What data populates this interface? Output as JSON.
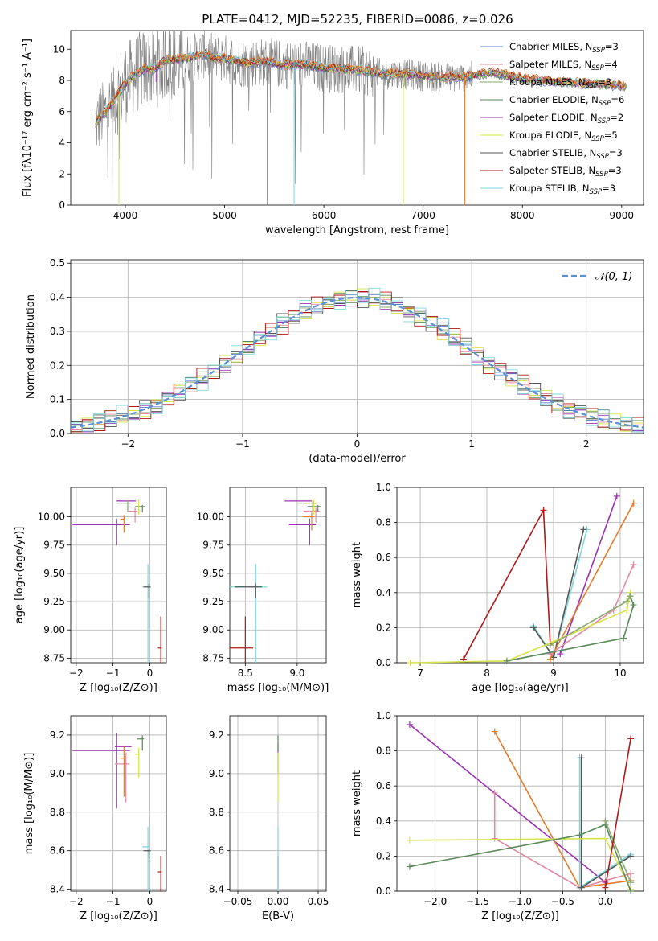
{
  "figure_title": "PLATE=0412, MJD=52235, FIBERID=0086, z=0.026",
  "colors": {
    "chabrier_miles": "#5b7fc6",
    "salpeter_miles": "#e08aa2",
    "kroupa_miles": "#8aa86a",
    "chabrier_elodie": "#5a8a5a",
    "salpeter_elodie": "#9a30b4",
    "kroupa_elodie": "#d6e44a",
    "chabrier_stelib": "#555555",
    "salpeter_stelib": "#b01818",
    "kroupa_stelib": "#7fd6dc",
    "orange_model": "#e07b2a",
    "gray_data": "#808080",
    "gaussian": "#5b8fd6"
  },
  "chart_data": [
    {
      "id": "spectrum",
      "type": "line",
      "title": "PLATE=0412, MJD=52235, FIBERID=0086, z=0.026",
      "xlabel": "wavelength [Angstrom, rest frame]",
      "ylabel": "Flux [fλ10⁻¹⁷ erg cm⁻² s⁻¹ A⁻¹]",
      "xlim": [
        3450,
        9220
      ],
      "ylim": [
        0,
        11.2
      ],
      "xticks": [
        4000,
        5000,
        6000,
        7000,
        8000,
        9000
      ],
      "yticks": [
        0,
        2,
        4,
        6,
        8,
        10
      ],
      "grid": false,
      "legend_position": "top-right",
      "legend": [
        {
          "label": "Chabrier MILES, N",
          "sub": "SSP",
          "suffix": "=3",
          "color_key": "chabrier_miles"
        },
        {
          "label": "Salpeter MILES, N",
          "sub": "SSP",
          "suffix": "=4",
          "color_key": "salpeter_miles"
        },
        {
          "label": "Kroupa MILES, N",
          "sub": "SSP",
          "suffix": "=3",
          "color_key": "kroupa_miles"
        },
        {
          "label": "Chabrier ELODIE, N",
          "sub": "SSP",
          "suffix": "=6",
          "color_key": "chabrier_elodie"
        },
        {
          "label": "Salpeter ELODIE, N",
          "sub": "SSP",
          "suffix": "=2",
          "color_key": "salpeter_elodie"
        },
        {
          "label": "Kroupa ELODIE, N",
          "sub": "SSP",
          "suffix": "=5",
          "color_key": "kroupa_elodie"
        },
        {
          "label": "Chabrier STELIB, N",
          "sub": "SSP",
          "suffix": "=3",
          "color_key": "chabrier_stelib"
        },
        {
          "label": "Salpeter STELIB, N",
          "sub": "SSP",
          "suffix": "=3",
          "color_key": "salpeter_stelib"
        },
        {
          "label": "Kroupa STELIB, N",
          "sub": "SSP",
          "suffix": "=3",
          "color_key": "kroupa_stelib"
        }
      ],
      "continuum": {
        "x": [
          3700,
          3800,
          3900,
          4000,
          4100,
          4200,
          4300,
          4400,
          4500,
          4600,
          4700,
          4800,
          4900,
          5000,
          5200,
          5400,
          5600,
          5800,
          6000,
          6200,
          6400,
          6600,
          6800,
          7000,
          7200,
          7400,
          7500,
          7700,
          8000,
          8300,
          8600,
          8900,
          9200
        ],
        "y": [
          5.2,
          6.0,
          6.8,
          7.8,
          8.4,
          8.8,
          8.7,
          9.3,
          9.3,
          9.4,
          9.5,
          9.7,
          9.4,
          9.4,
          9.1,
          9.2,
          9.0,
          9.0,
          8.8,
          8.7,
          8.6,
          8.4,
          8.4,
          8.3,
          8.2,
          8.2,
          8.3,
          8.5,
          8.1,
          7.9,
          7.8,
          7.7,
          7.5
        ]
      },
      "absorption_dips": [
        {
          "x": 3935,
          "y": 0.0,
          "color_key": "kroupa_elodie"
        },
        {
          "x": 4310,
          "y": 7.9,
          "color_key": "salpeter_elodie"
        },
        {
          "x": 5430,
          "y": 0.0,
          "color_key": "gray_data"
        },
        {
          "x": 5700,
          "y": 0.0,
          "color_key": "kroupa_stelib"
        },
        {
          "x": 6800,
          "y": 0.0,
          "color_key": "kroupa_elodie"
        },
        {
          "x": 7420,
          "y": 0.0,
          "color_key": "orange_model"
        }
      ]
    },
    {
      "id": "residual_histogram",
      "type": "histogram",
      "xlabel": "(data-model)/error",
      "ylabel": "Normed distribution",
      "xlim": [
        -2.5,
        2.5
      ],
      "ylim": [
        0,
        0.51
      ],
      "xticks": [
        -2,
        -1,
        0,
        1,
        2
      ],
      "yticks": [
        0.0,
        0.1,
        0.2,
        0.3,
        0.4,
        0.5
      ],
      "grid": true,
      "legend_position": "top-right",
      "legend": [
        {
          "label": "𝒩(0, 1)",
          "color_key": "gaussian",
          "style": "dashed"
        }
      ],
      "bin_width": 0.1,
      "jitter": [
        0.012,
        -0.018,
        0.021,
        -0.009,
        0.015,
        -0.022,
        0.008,
        -0.013,
        0.019,
        -0.006,
        0.024,
        -0.016,
        0.011,
        -0.02,
        0.005,
        -0.011,
        0.017,
        -0.024,
        0.013,
        -0.004,
        0.02,
        -0.015,
        0.009,
        -0.019,
        0.014,
        -0.007,
        0.022,
        -0.012,
        0.006,
        -0.021,
        0.016,
        -0.01,
        0.023,
        -0.017,
        0.01,
        -0.023,
        0.018,
        -0.005,
        0.025,
        -0.014,
        0.007,
        -0.02,
        0.012,
        -0.008,
        0.019,
        -0.016,
        0.004,
        -0.012,
        0.021,
        -0.018
      ],
      "series_keys": [
        "chabrier_miles",
        "salpeter_miles",
        "kroupa_miles",
        "chabrier_elodie",
        "salpeter_elodie",
        "kroupa_elodie",
        "chabrier_stelib",
        "salpeter_stelib",
        "kroupa_stelib"
      ]
    },
    {
      "id": "age_vs_Z",
      "type": "scatter",
      "xlabel": "Z [log₁₀(Z/Z⊙)]",
      "ylabel": "age  [log₁₀(age/yr)]",
      "xlim": [
        -2.15,
        0.45
      ],
      "ylim": [
        8.71,
        10.26
      ],
      "xticks": [
        -2,
        -1,
        0
      ],
      "yticks": [
        8.75,
        9.0,
        9.25,
        9.5,
        9.75,
        10.0
      ],
      "grid": true,
      "points": [
        {
          "x": -0.9,
          "y": 9.93,
          "dx": 1.2,
          "dy": 0.18,
          "color_key": "salpeter_elodie"
        },
        {
          "x": -0.5,
          "y": 10.14,
          "dx": 0.4,
          "dy": 0.0,
          "color_key": "salpeter_elodie"
        },
        {
          "x": -0.6,
          "y": 10.12,
          "dx": 0.3,
          "dy": 0.08,
          "color_key": "kroupa_miles"
        },
        {
          "x": -0.4,
          "y": 10.05,
          "dx": 0.2,
          "dy": 0.1,
          "color_key": "salpeter_miles"
        },
        {
          "x": -0.7,
          "y": 9.98,
          "dx": 0.1,
          "dy": 0.12,
          "color_key": "orange_model"
        },
        {
          "x": -0.2,
          "y": 10.09,
          "dx": 0.2,
          "dy": 0.05,
          "color_key": "chabrier_elodie"
        },
        {
          "x": -0.3,
          "y": 10.12,
          "dx": 0.1,
          "dy": 0.1,
          "color_key": "kroupa_elodie"
        },
        {
          "x": -0.05,
          "y": 9.38,
          "dx": 0.15,
          "dy": 0.68,
          "color_key": "kroupa_stelib"
        },
        {
          "x": -0.02,
          "y": 9.38,
          "dx": 0.15,
          "dy": 0.1,
          "color_key": "chabrier_stelib"
        },
        {
          "x": 0.3,
          "y": 8.84,
          "dx": 0.08,
          "dy": 0.93,
          "color_key": "salpeter_stelib"
        }
      ]
    },
    {
      "id": "age_vs_mass",
      "type": "scatter",
      "xlabel": "mass [log₁₀(M/M⊙)]",
      "ylabel": "",
      "xlim": [
        8.35,
        9.28
      ],
      "ylim": [
        8.71,
        10.26
      ],
      "xticks": [
        8.5,
        9.0
      ],
      "yticks": [
        8.75,
        9.0,
        9.25,
        9.5,
        9.75,
        10.0
      ],
      "grid": true,
      "points": [
        {
          "x": 8.5,
          "y": 8.84,
          "dx": 0.25,
          "dy": 0.93,
          "color_key": "salpeter_stelib"
        },
        {
          "x": 8.6,
          "y": 9.38,
          "dx": 0.37,
          "dy": 0.68,
          "color_key": "kroupa_stelib"
        },
        {
          "x": 8.6,
          "y": 9.38,
          "dx": 0.2,
          "dy": 0.1,
          "color_key": "chabrier_stelib"
        },
        {
          "x": 9.12,
          "y": 9.93,
          "dx": 0.2,
          "dy": 0.18,
          "color_key": "salpeter_elodie"
        },
        {
          "x": 9.08,
          "y": 10.14,
          "dx": 0.2,
          "dy": 0.0,
          "color_key": "salpeter_elodie"
        },
        {
          "x": 9.15,
          "y": 10.12,
          "dx": 0.15,
          "dy": 0.08,
          "color_key": "kroupa_miles"
        },
        {
          "x": 9.18,
          "y": 10.05,
          "dx": 0.12,
          "dy": 0.1,
          "color_key": "salpeter_miles"
        },
        {
          "x": 9.14,
          "y": 10.0,
          "dx": 0.08,
          "dy": 0.12,
          "color_key": "orange_model"
        },
        {
          "x": 9.2,
          "y": 10.09,
          "dx": 0.1,
          "dy": 0.05,
          "color_key": "chabrier_elodie"
        },
        {
          "x": 9.16,
          "y": 10.12,
          "dx": 0.1,
          "dy": 0.1,
          "color_key": "kroupa_elodie"
        }
      ]
    },
    {
      "id": "mass_weight_vs_age",
      "type": "line",
      "xlabel": "age  [log₁₀(age/yr)]",
      "ylabel": "mass weight",
      "xlim": [
        6.65,
        10.35
      ],
      "ylim": [
        0,
        1.0
      ],
      "xticks": [
        7,
        8,
        9,
        10
      ],
      "yticks": [
        0.0,
        0.2,
        0.4,
        0.6,
        0.8,
        1.0
      ],
      "grid": true,
      "series": [
        {
          "color_key": "salpeter_stelib",
          "x": [
            7.65,
            8.85,
            8.95
          ],
          "y": [
            0.02,
            0.87,
            0.11
          ]
        },
        {
          "color_key": "kroupa_stelib",
          "x": [
            8.7,
            9.0,
            9.5
          ],
          "y": [
            0.21,
            0.03,
            0.76
          ]
        },
        {
          "color_key": "chabrier_stelib",
          "x": [
            8.7,
            9.0,
            9.45
          ],
          "y": [
            0.2,
            0.03,
            0.76
          ]
        },
        {
          "color_key": "salpeter_elodie",
          "x": [
            9.1,
            9.95
          ],
          "y": [
            0.05,
            0.95
          ]
        },
        {
          "color_key": "orange_model",
          "x": [
            8.95,
            10.2
          ],
          "y": [
            0.02,
            0.91
          ]
        },
        {
          "color_key": "salpeter_miles",
          "x": [
            8.95,
            9.9,
            10.2
          ],
          "y": [
            0.05,
            0.3,
            0.56
          ]
        },
        {
          "color_key": "kroupa_elodie",
          "x": [
            6.85,
            8.3,
            9.0,
            10.1,
            10.15
          ],
          "y": [
            0.0,
            0.01,
            0.12,
            0.3,
            0.4
          ]
        },
        {
          "color_key": "chabrier_elodie",
          "x": [
            8.3,
            10.05,
            10.2,
            10.15
          ],
          "y": [
            0.01,
            0.14,
            0.33,
            0.38
          ]
        },
        {
          "color_key": "kroupa_miles",
          "x": [
            8.95,
            10.1,
            10.15
          ],
          "y": [
            0.1,
            0.35,
            0.38
          ]
        }
      ]
    },
    {
      "id": "mass_vs_Z",
      "type": "scatter",
      "xlabel": "Z [log₁₀(Z/Z⊙)]",
      "ylabel": "mass  [log₁₀(M/M⊙)]",
      "xlim": [
        -2.15,
        0.45
      ],
      "ylim": [
        8.39,
        9.3
      ],
      "xticks": [
        -2,
        -1,
        0
      ],
      "yticks": [
        8.4,
        8.6,
        8.8,
        9.0,
        9.2
      ],
      "grid": true,
      "points": [
        {
          "x": -0.9,
          "y": 9.12,
          "dx": 1.2,
          "dy": 0.3,
          "color_key": "salpeter_elodie"
        },
        {
          "x": -0.6,
          "y": 9.14,
          "dx": 0.35,
          "dy": 0.0,
          "color_key": "salpeter_elodie"
        },
        {
          "x": -0.65,
          "y": 9.05,
          "dx": 0.3,
          "dy": 0.2,
          "color_key": "salpeter_miles"
        },
        {
          "x": -0.7,
          "y": 9.08,
          "dx": 0.1,
          "dy": 0.2,
          "color_key": "orange_model"
        },
        {
          "x": -0.2,
          "y": 9.18,
          "dx": 0.15,
          "dy": 0.06,
          "color_key": "chabrier_elodie"
        },
        {
          "x": -0.3,
          "y": 9.1,
          "dx": 0.1,
          "dy": 0.12,
          "color_key": "kroupa_elodie"
        },
        {
          "x": -0.05,
          "y": 8.62,
          "dx": 0.15,
          "dy": 0.35,
          "color_key": "kroupa_stelib"
        },
        {
          "x": -0.02,
          "y": 8.6,
          "dx": 0.15,
          "dy": 0.03,
          "color_key": "chabrier_stelib"
        },
        {
          "x": 0.3,
          "y": 8.49,
          "dx": 0.08,
          "dy": 0.28,
          "color_key": "salpeter_stelib"
        }
      ]
    },
    {
      "id": "mass_vs_ebv",
      "type": "scatter",
      "xlabel": "E(B-V)",
      "ylabel": "",
      "xlim": [
        -0.06,
        0.06
      ],
      "ylim": [
        8.39,
        9.3
      ],
      "xticks": [
        -0.05,
        0.0,
        0.05
      ],
      "xtick_labels": [
        "−0.05",
        "0.00",
        "0.05"
      ],
      "yticks": [
        8.4,
        8.6,
        8.8,
        9.0,
        9.2
      ],
      "grid": true,
      "points": [
        {
          "x": 0.0,
          "y": 8.49,
          "dx": 0,
          "dy": 0.28,
          "color_key": "salpeter_stelib"
        },
        {
          "x": 0.0,
          "y": 8.62,
          "dx": 0,
          "dy": 0.35,
          "color_key": "kroupa_stelib"
        },
        {
          "x": 0.0,
          "y": 9.12,
          "dx": 0,
          "dy": 0.12,
          "color_key": "salpeter_elodie"
        },
        {
          "x": 0.0,
          "y": 9.05,
          "dx": 0,
          "dy": 0.2,
          "color_key": "kroupa_elodie"
        },
        {
          "x": 0.0,
          "y": 9.18,
          "dx": 0,
          "dy": 0.06,
          "color_key": "chabrier_elodie"
        }
      ]
    },
    {
      "id": "mass_weight_vs_Z",
      "type": "line",
      "xlabel": "Z [log₁₀(Z/Z⊙)]",
      "ylabel": "mass weight",
      "xlim": [
        -2.45,
        0.45
      ],
      "ylim": [
        0,
        1.0
      ],
      "xticks": [
        -2.0,
        -1.5,
        -1.0,
        -0.5,
        0.0
      ],
      "xtick_labels": [
        "−2.0",
        "−1.5",
        "−1.0",
        "−0.5",
        "0.0"
      ],
      "yticks": [
        0.0,
        0.2,
        0.4,
        0.6,
        0.8,
        1.0
      ],
      "grid": true,
      "series": [
        {
          "color_key": "salpeter_elodie",
          "x": [
            -2.3,
            0.0
          ],
          "y": [
            0.95,
            0.05
          ]
        },
        {
          "color_key": "orange_model",
          "x": [
            -1.3,
            -0.3,
            0.3
          ],
          "y": [
            0.91,
            0.02,
            0.06
          ]
        },
        {
          "color_key": "salpeter_miles",
          "x": [
            -1.3,
            -1.3,
            -0.3,
            0.3,
            0.3
          ],
          "y": [
            0.56,
            0.3,
            0.02,
            0.1,
            0.05
          ]
        },
        {
          "color_key": "kroupa_stelib",
          "x": [
            -0.3,
            -0.3,
            0.3
          ],
          "y": [
            0.76,
            0.02,
            0.21
          ]
        },
        {
          "color_key": "chabrier_stelib",
          "x": [
            -0.28,
            -0.28,
            0.3
          ],
          "y": [
            0.76,
            0.02,
            0.2
          ]
        },
        {
          "color_key": "kroupa_elodie",
          "x": [
            -2.3,
            0.0,
            0.3
          ],
          "y": [
            0.29,
            0.3,
            0.01
          ]
        },
        {
          "color_key": "chabrier_elodie",
          "x": [
            -2.3,
            -0.3,
            0.0,
            0.3
          ],
          "y": [
            0.14,
            0.32,
            0.38,
            0.0
          ]
        },
        {
          "color_key": "kroupa_miles",
          "x": [
            0.0,
            0.3
          ],
          "y": [
            0.4,
            0.05
          ]
        },
        {
          "color_key": "salpeter_stelib",
          "x": [
            0.0,
            0.3
          ],
          "y": [
            0.02,
            0.87
          ]
        }
      ]
    }
  ]
}
